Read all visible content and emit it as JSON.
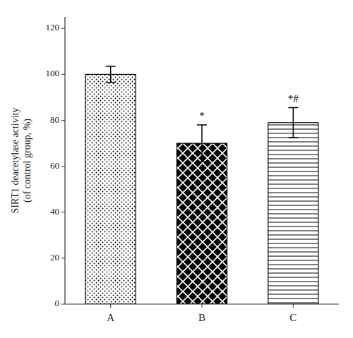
{
  "chart_data": {
    "type": "bar",
    "categories": [
      "A",
      "B",
      "C"
    ],
    "values": [
      100,
      70,
      79
    ],
    "errors": [
      3.5,
      8.0,
      6.5
    ],
    "annotations": [
      null,
      "*",
      "*#"
    ],
    "colors": [
      "white",
      "black",
      "white"
    ],
    "ylabel": "SIRT1 deacetylase activity\n(of control group, %)",
    "ylim": [
      0,
      125
    ],
    "yticks": [
      0,
      20,
      40,
      60,
      80,
      100,
      120
    ]
  }
}
